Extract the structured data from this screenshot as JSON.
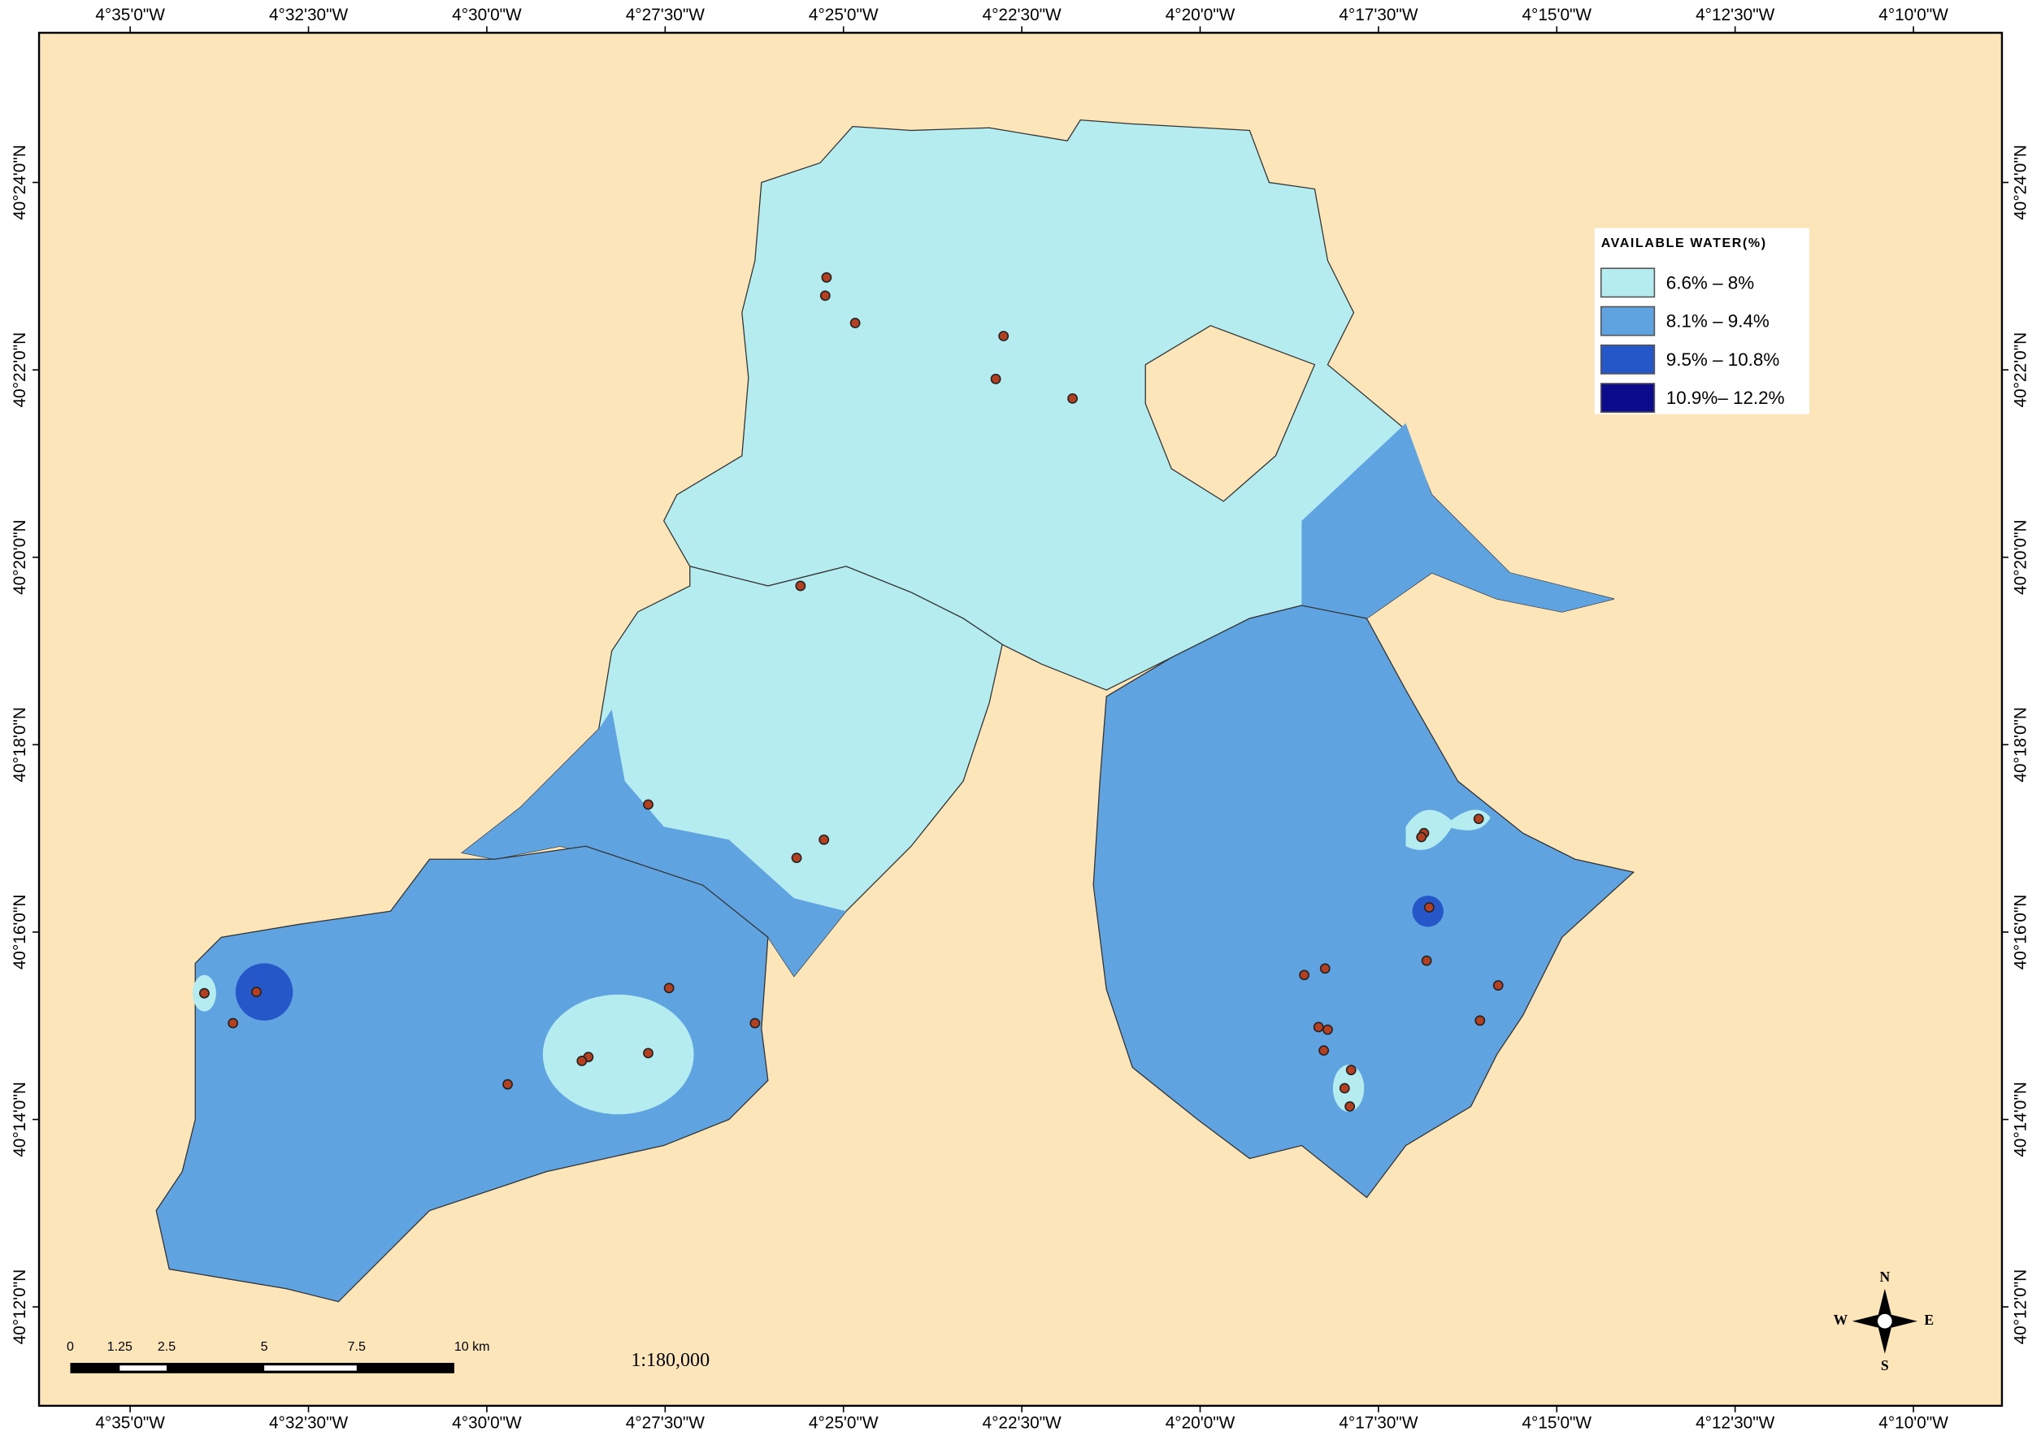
{
  "graticule": {
    "longitudes": [
      "4°35'0\"W",
      "4°32'30\"W",
      "4°30'0\"W",
      "4°27'30\"W",
      "4°25'0\"W",
      "4°22'30\"W",
      "4°20'0\"W",
      "4°17'30\"W",
      "4°15'0\"W",
      "4°12'30\"W",
      "4°10'0\"W"
    ],
    "latitudes": [
      "40°24'0\"N",
      "40°22'0\"N",
      "40°20'0\"N",
      "40°18'0\"N",
      "40°16'0\"N",
      "40°14'0\"N",
      "40°12'0\"N"
    ]
  },
  "legend": {
    "title": "AVAILABLE WATER(%)",
    "items": [
      {
        "label": "6.6% – 8%",
        "color": "#b4ecef"
      },
      {
        "label": "8.1% – 9.4%",
        "color": "#5fa3e1"
      },
      {
        "label": "9.5% – 10.8%",
        "color": "#2657c9"
      },
      {
        "label": "10.9%– 12.2%",
        "color": "#0b0b8c"
      }
    ]
  },
  "scale_bar": {
    "labels": [
      "0",
      "1.25",
      "2.5",
      "5",
      "7.5",
      "10 km"
    ],
    "ratio": "1:180,000"
  },
  "compass": {
    "n": "N",
    "s": "S",
    "e": "E",
    "w": "W"
  }
}
